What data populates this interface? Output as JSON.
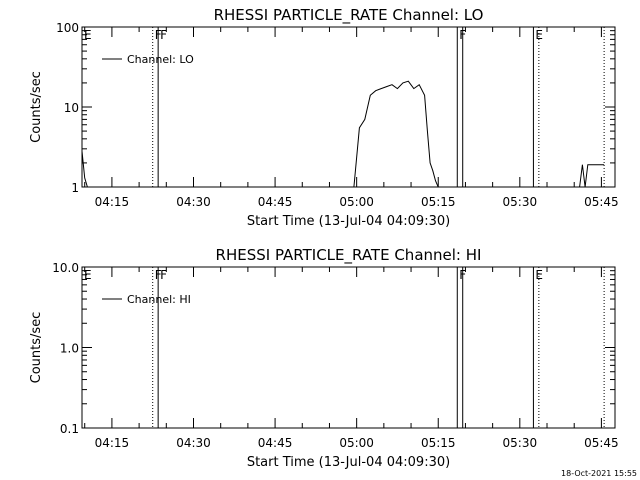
{
  "chart_data": [
    {
      "type": "line",
      "title": "RHESSI PARTICLE_RATE Channel: LO",
      "xlabel": "Start Time (13-Jul-04 04:09:30)",
      "ylabel": "Counts/sec",
      "y_scale": "log",
      "ylim": [
        1,
        100
      ],
      "y_ticks": [
        "1",
        "10",
        "100"
      ],
      "x_ticks": [
        "04:15",
        "04:30",
        "04:45",
        "05:00",
        "05:15",
        "05:30",
        "05:45"
      ],
      "legend": "top-left",
      "series": [
        {
          "name": "Channel: LO",
          "x": [
            "04:09:30",
            "04:10:00",
            "04:10:30",
            "04:59:30",
            "05:00:30",
            "05:01:30",
            "05:02:30",
            "05:03:30",
            "05:04:30",
            "05:05:30",
            "05:06:30",
            "05:07:30",
            "05:08:30",
            "05:09:30",
            "05:10:30",
            "05:11:30",
            "05:12:30",
            "05:13:00",
            "05:13:30",
            "05:14:00",
            "05:14:30",
            "05:15:00",
            "05:41:00",
            "05:41:30",
            "05:42:00",
            "05:42:30",
            "05:45:30"
          ],
          "y": [
            2.8,
            1.3,
            0.9,
            0.9,
            5.5,
            7.0,
            14.0,
            16.0,
            17.0,
            18.0,
            19.0,
            17.0,
            20.0,
            21.0,
            17.0,
            19.0,
            14.0,
            5.0,
            2.0,
            1.6,
            1.2,
            0.9,
            0.9,
            1.9,
            1.0,
            1.9,
            1.9
          ]
        }
      ],
      "flags": [
        {
          "label": "E",
          "time": "04:09:30",
          "style": "none"
        },
        {
          "label": "F",
          "time": "04:22:30",
          "style": "dotted"
        },
        {
          "label": "F",
          "time": "04:23:30",
          "style": "solid"
        },
        {
          "label": "F",
          "time": "05:18:30",
          "style": "solid"
        },
        {
          "label": "",
          "time": "05:19:30",
          "style": "solid"
        },
        {
          "label": "E",
          "time": "05:32:30",
          "style": "solid"
        },
        {
          "label": "",
          "time": "05:33:30",
          "style": "dotted"
        },
        {
          "label": "",
          "time": "05:45:30",
          "style": "dotted"
        }
      ]
    },
    {
      "type": "line",
      "title": "RHESSI PARTICLE_RATE Channel: HI",
      "xlabel": "Start Time (13-Jul-04 04:09:30)",
      "ylabel": "Counts/sec",
      "y_scale": "log",
      "ylim": [
        0.1,
        10
      ],
      "y_ticks": [
        "0.1",
        "1.0",
        "10.0"
      ],
      "x_ticks": [
        "04:15",
        "04:30",
        "04:45",
        "05:00",
        "05:15",
        "05:30",
        "05:45"
      ],
      "legend": "top-left",
      "series": [
        {
          "name": "Channel: HI",
          "x": [],
          "y": []
        }
      ],
      "flags": [
        {
          "label": "E",
          "time": "04:09:30",
          "style": "none"
        },
        {
          "label": "F",
          "time": "04:22:30",
          "style": "dotted"
        },
        {
          "label": "F",
          "time": "04:23:30",
          "style": "solid"
        },
        {
          "label": "F",
          "time": "05:18:30",
          "style": "solid"
        },
        {
          "label": "",
          "time": "05:19:30",
          "style": "solid"
        },
        {
          "label": "E",
          "time": "05:32:30",
          "style": "solid"
        },
        {
          "label": "",
          "time": "05:33:30",
          "style": "dotted"
        },
        {
          "label": "",
          "time": "05:45:30",
          "style": "dotted"
        }
      ]
    }
  ],
  "timestamp": "18-Oct-2021 15:55"
}
